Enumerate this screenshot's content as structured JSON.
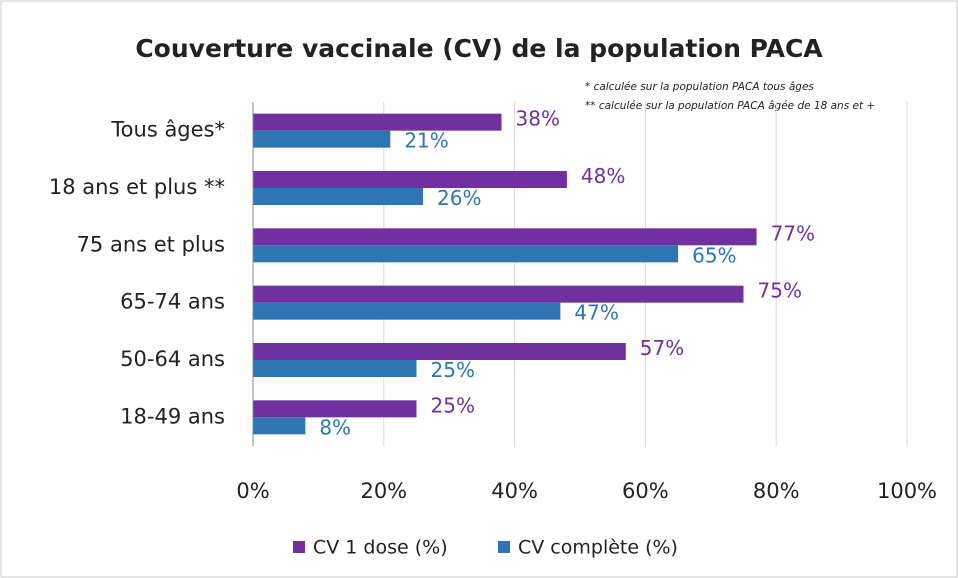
{
  "chart_data": {
    "type": "bar",
    "orientation": "horizontal",
    "title": "Couverture vaccinale (CV) de la population PACA",
    "annotations": [
      "* calculée sur la population PACA tous âges",
      "** calculée sur la population PACA âgée de 18 ans et +"
    ],
    "categories": [
      "Tous âges*",
      "18 ans et plus **",
      "75 ans et plus",
      "65-74 ans",
      "50-64 ans",
      "18-49 ans"
    ],
    "series": [
      {
        "name": "CV 1 dose (%)",
        "color": "#7030a0",
        "values": [
          38,
          48,
          77,
          75,
          57,
          25
        ],
        "value_labels": [
          "38%",
          "48%",
          "77%",
          "75%",
          "57%",
          "25%"
        ]
      },
      {
        "name": "CV complète (%)",
        "color": "#2e75b6",
        "values": [
          21,
          26,
          65,
          47,
          25,
          8
        ],
        "value_labels": [
          "21%",
          "26%",
          "65%",
          "47%",
          "25%",
          "8%"
        ]
      }
    ],
    "xlim": [
      0,
      100
    ],
    "xticks": [
      {
        "value": 0,
        "label": "0%"
      },
      {
        "value": 20,
        "label": "20%"
      },
      {
        "value": 40,
        "label": "40%"
      },
      {
        "value": 60,
        "label": "60%"
      },
      {
        "value": 80,
        "label": "80%"
      },
      {
        "value": 100,
        "label": "100%"
      }
    ],
    "grid": true,
    "legend": "bottom"
  }
}
